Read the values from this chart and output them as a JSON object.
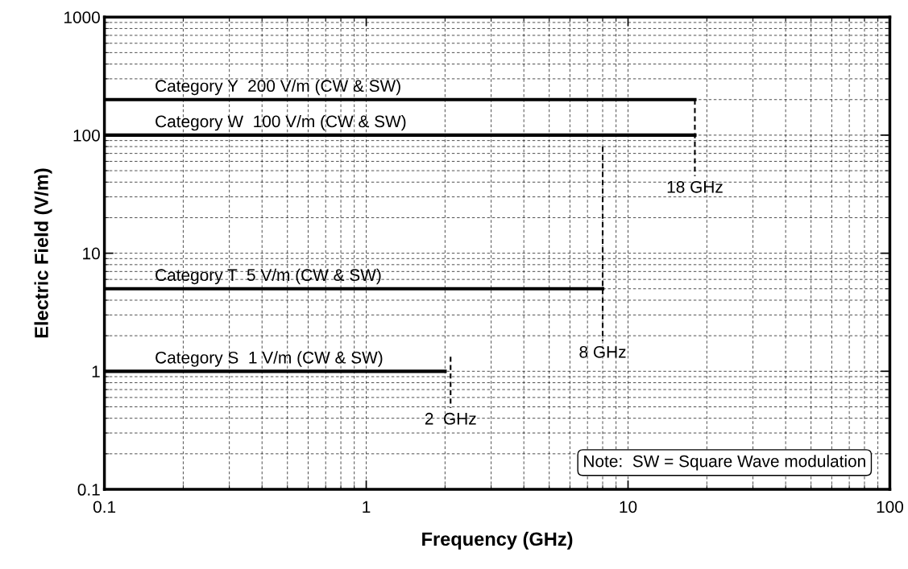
{
  "chart_data": {
    "type": "line",
    "xlabel": "Frequency (GHz)",
    "ylabel": "Electric Field (V/m)",
    "log": "xy",
    "xlim": [
      0.1,
      100
    ],
    "ylim": [
      0.1,
      1000
    ],
    "xticks": [
      0.1,
      1,
      10,
      100
    ],
    "yticks": [
      0.1,
      1,
      10,
      100,
      1000
    ],
    "grid": true,
    "legend": false,
    "marker": "none",
    "series": [
      {
        "name": "Category Y  200 V/m (CW & SW)",
        "color": "#000000",
        "x": [
          0.1,
          18
        ],
        "values": [
          200,
          200
        ],
        "line_style": "solid"
      },
      {
        "name": "Category W  100 V/m (CW & SW)",
        "color": "#000000",
        "x": [
          0.1,
          18
        ],
        "values": [
          100,
          100
        ],
        "line_style": "solid"
      },
      {
        "name": "Category T  5 V/m (CW & SW)",
        "color": "#000000",
        "x": [
          0.1,
          8
        ],
        "values": [
          5,
          5
        ],
        "line_style": "solid"
      },
      {
        "name": "Category S  1 V/m (CW & SW)",
        "color": "#000000",
        "x": [
          0.1,
          2
        ],
        "values": [
          1,
          1
        ],
        "line_style": "solid"
      },
      {
        "color": "#000000",
        "x": [
          18,
          18
        ],
        "values": [
          200,
          45
        ],
        "line_style": "dashed"
      },
      {
        "color": "#000000",
        "x": [
          8,
          8
        ],
        "values": [
          80,
          1.8
        ],
        "line_style": "dashed"
      },
      {
        "color": "#000000",
        "x": [
          2.1,
          2.1
        ],
        "values": [
          1.33,
          0.49
        ],
        "line_style": "dashed"
      }
    ],
    "annotations": [
      {
        "text": "18 GHz",
        "x": 18,
        "y": 45
      },
      {
        "text": "8 GHz",
        "x": 8,
        "y": 1.8
      },
      {
        "text": "2  GHz",
        "x": 2.1,
        "y": 0.49
      },
      "Note:  SW = Square Wave modulation"
    ]
  }
}
